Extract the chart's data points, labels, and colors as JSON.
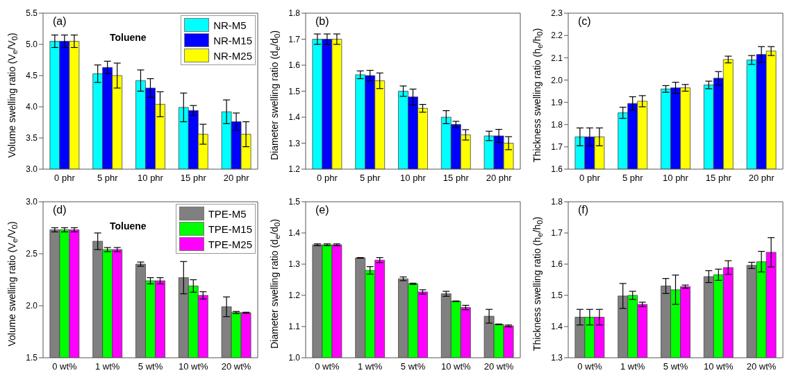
{
  "chart_data": [
    {
      "type": "bar",
      "ylabel": "Volume swelling ratio (V$_{e}$/V$_{0}$)",
      "annotations": [
        "(a)",
        "Toluene"
      ],
      "categories": [
        "0 phr",
        "5 phr",
        "10 phr",
        "15 phr",
        "20 phr"
      ],
      "ylim": [
        3.0,
        5.5
      ],
      "yticks": [
        {
          "value": 3,
          "label": "3.0"
        },
        {
          "value": 3.5,
          "label": "3.5"
        },
        {
          "value": 4,
          "label": "4.0"
        },
        {
          "value": 4.5,
          "label": "4.5"
        },
        {
          "value": 5,
          "label": "5.0"
        },
        {
          "value": 5.5,
          "label": "5.5"
        }
      ],
      "legend": "top right",
      "series": [
        {
          "name": "NR-M5",
          "color": "#00ffff",
          "values": [
            5.05,
            4.53,
            4.42,
            3.99,
            3.92
          ],
          "errors": [
            0.1,
            0.14,
            0.17,
            0.23,
            0.19
          ]
        },
        {
          "name": "NR-M15",
          "color": "#0000ff",
          "values": [
            5.05,
            4.63,
            4.3,
            3.94,
            3.76
          ],
          "errors": [
            0.1,
            0.1,
            0.15,
            0.08,
            0.14
          ]
        },
        {
          "name": "NR-M25",
          "color": "#ffff00",
          "values": [
            5.05,
            4.5,
            4.04,
            3.56,
            3.56
          ],
          "errors": [
            0.1,
            0.2,
            0.2,
            0.16,
            0.2
          ]
        }
      ]
    },
    {
      "type": "bar",
      "ylabel": "Diameter swelling ratio (d$_{e}$/d$_{0}$)",
      "annotations": [
        "(b)"
      ],
      "categories": [
        "0 phr",
        "5 phr",
        "10 phr",
        "15 phr",
        "20 phr"
      ],
      "ylim": [
        1.2,
        1.8
      ],
      "yticks": [
        {
          "value": 1.2,
          "label": "1.2"
        },
        {
          "value": 1.3,
          "label": "1.3"
        },
        {
          "value": 1.4,
          "label": "1.4"
        },
        {
          "value": 1.5,
          "label": "1.5"
        },
        {
          "value": 1.6,
          "label": "1.6"
        },
        {
          "value": 1.7,
          "label": "1.7"
        },
        {
          "value": 1.8,
          "label": "1.8"
        }
      ],
      "series": [
        {
          "color": "#00ffff",
          "values": [
            1.7,
            1.563,
            1.5,
            1.4,
            1.328
          ],
          "errors": [
            0.02,
            0.015,
            0.02,
            0.025,
            0.018
          ]
        },
        {
          "color": "#0000ff",
          "values": [
            1.7,
            1.56,
            1.478,
            1.372,
            1.328
          ],
          "errors": [
            0.02,
            0.02,
            0.03,
            0.012,
            0.025
          ]
        },
        {
          "color": "#ffff00",
          "values": [
            1.7,
            1.54,
            1.434,
            1.332,
            1.3
          ],
          "errors": [
            0.02,
            0.03,
            0.015,
            0.02,
            0.025
          ]
        }
      ]
    },
    {
      "type": "bar",
      "ylabel": "Thickness swelling ratio (h$_{e}$/h$_{0}$)",
      "annotations": [
        "(c)"
      ],
      "categories": [
        "0 phr",
        "5 phr",
        "10 phr",
        "15 phr",
        "20 phr"
      ],
      "ylim": [
        1.6,
        2.3
      ],
      "yticks": [
        {
          "value": 1.6,
          "label": "1.6"
        },
        {
          "value": 1.7,
          "label": "1.7"
        },
        {
          "value": 1.8,
          "label": "1.8"
        },
        {
          "value": 1.9,
          "label": "1.9"
        },
        {
          "value": 2,
          "label": "2.0"
        },
        {
          "value": 2.1,
          "label": "2.1"
        },
        {
          "value": 2.2,
          "label": "2.2"
        },
        {
          "value": 2.3,
          "label": "2.3"
        }
      ],
      "series": [
        {
          "color": "#00ffff",
          "values": [
            1.745,
            1.853,
            1.96,
            1.978,
            2.09
          ],
          "errors": [
            0.04,
            0.025,
            0.015,
            0.017,
            0.02
          ]
        },
        {
          "color": "#0000ff",
          "values": [
            1.745,
            1.895,
            1.965,
            2.008,
            2.115
          ],
          "errors": [
            0.04,
            0.03,
            0.025,
            0.03,
            0.035
          ]
        },
        {
          "color": "#ffff00",
          "values": [
            1.745,
            1.905,
            1.965,
            2.092,
            2.13
          ],
          "errors": [
            0.04,
            0.025,
            0.015,
            0.015,
            0.02
          ]
        }
      ]
    },
    {
      "type": "bar",
      "ylabel": "Volume swelling ratio (V$_{e}$/V$_{0}$)",
      "annotations": [
        "(d)",
        "Toluene"
      ],
      "categories": [
        "0 wt%",
        "1 wt%",
        "5 wt%",
        "10 wt%",
        "20 wt%"
      ],
      "ylim": [
        1.5,
        3.0
      ],
      "yticks": [
        {
          "value": 1.5,
          "label": "1.5"
        },
        {
          "value": 2,
          "label": "2.0"
        },
        {
          "value": 2.5,
          "label": "2.5"
        },
        {
          "value": 3,
          "label": "3.0"
        }
      ],
      "legend": "top right",
      "series": [
        {
          "name": "TPE-M5",
          "color": "#808080",
          "values": [
            2.73,
            2.62,
            2.4,
            2.27,
            1.99
          ],
          "errors": [
            0.02,
            0.08,
            0.02,
            0.155,
            0.095
          ]
        },
        {
          "name": "TPE-M15",
          "color": "#00ff00",
          "values": [
            2.73,
            2.54,
            2.24,
            2.19,
            1.935
          ],
          "errors": [
            0.02,
            0.02,
            0.03,
            0.06,
            0.01
          ]
        },
        {
          "name": "TPE-M25",
          "color": "#ff00ff",
          "values": [
            2.73,
            2.54,
            2.24,
            2.1,
            1.933
          ],
          "errors": [
            0.02,
            0.02,
            0.03,
            0.035,
            0.005
          ]
        }
      ]
    },
    {
      "type": "bar",
      "ylabel": "Diameter swelling ratio (d$_{e}$/d$_{0}$)",
      "annotations": [
        "(e)"
      ],
      "categories": [
        "0 wt%",
        "1 wt%",
        "5 wt%",
        "10 wt%",
        "20 wt%"
      ],
      "ylim": [
        1.0,
        1.5
      ],
      "yticks": [
        {
          "value": 1,
          "label": "1.0"
        },
        {
          "value": 1.1,
          "label": "1.1"
        },
        {
          "value": 1.2,
          "label": "1.2"
        },
        {
          "value": 1.3,
          "label": "1.3"
        },
        {
          "value": 1.4,
          "label": "1.4"
        },
        {
          "value": 1.5,
          "label": "1.5"
        }
      ],
      "series": [
        {
          "color": "#808080",
          "values": [
            1.362,
            1.32,
            1.253,
            1.205,
            1.133
          ],
          "errors": [
            0.003,
            0.001,
            0.006,
            0.008,
            0.022
          ]
        },
        {
          "color": "#00ff00",
          "values": [
            1.362,
            1.28,
            1.237,
            1.181,
            1.107
          ],
          "errors": [
            0.003,
            0.012,
            0.002,
            0.001,
            0.001
          ]
        },
        {
          "color": "#ff00ff",
          "values": [
            1.362,
            1.313,
            1.211,
            1.161,
            1.102
          ],
          "errors": [
            0.003,
            0.008,
            0.007,
            0.007,
            0.003
          ]
        }
      ]
    },
    {
      "type": "bar",
      "ylabel": "Thickness swelling ratio (h$_{e}$/h$_{0}$)",
      "annotations": [
        "(f)"
      ],
      "categories": [
        "0 wt%",
        "1 wt%",
        "5 wt%",
        "10 wt%",
        "20 wt%"
      ],
      "ylim": [
        1.3,
        1.8
      ],
      "yticks": [
        {
          "value": 1.3,
          "label": "1.3"
        },
        {
          "value": 1.4,
          "label": "1.4"
        },
        {
          "value": 1.5,
          "label": "1.5"
        },
        {
          "value": 1.6,
          "label": "1.6"
        },
        {
          "value": 1.7,
          "label": "1.7"
        },
        {
          "value": 1.8,
          "label": "1.8"
        }
      ],
      "series": [
        {
          "color": "#808080",
          "values": [
            1.43,
            1.498,
            1.53,
            1.56,
            1.596
          ],
          "errors": [
            0.025,
            0.04,
            0.024,
            0.019,
            0.01
          ]
        },
        {
          "color": "#00ff00",
          "values": [
            1.43,
            1.5,
            1.518,
            1.566,
            1.608
          ],
          "errors": [
            0.025,
            0.013,
            0.047,
            0.018,
            0.033
          ]
        },
        {
          "color": "#ff00ff",
          "values": [
            1.43,
            1.471,
            1.528,
            1.589,
            1.638
          ],
          "errors": [
            0.025,
            0.007,
            0.005,
            0.022,
            0.047
          ]
        }
      ]
    }
  ]
}
